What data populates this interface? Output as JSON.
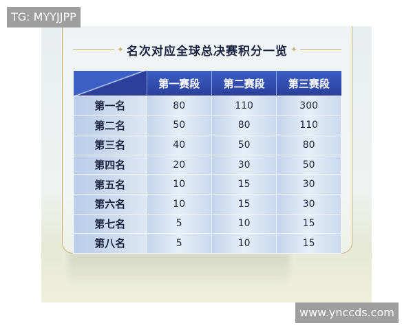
{
  "watermark_top": "TG: MYYJJPP",
  "watermark_bottom": "www.ynccds.com",
  "title": "名次对应全球总决赛积分一览",
  "table": {
    "headers": [
      "第一赛段",
      "第二赛段",
      "第三赛段"
    ],
    "rows": [
      {
        "rank": "第一名",
        "values": [
          "80",
          "110",
          "300"
        ]
      },
      {
        "rank": "第二名",
        "values": [
          "50",
          "80",
          "110"
        ]
      },
      {
        "rank": "第三名",
        "values": [
          "40",
          "50",
          "80"
        ]
      },
      {
        "rank": "第四名",
        "values": [
          "20",
          "30",
          "50"
        ]
      },
      {
        "rank": "第五名",
        "values": [
          "10",
          "15",
          "30"
        ]
      },
      {
        "rank": "第六名",
        "values": [
          "10",
          "15",
          "30"
        ]
      },
      {
        "rank": "第七名",
        "values": [
          "5",
          "10",
          "15"
        ]
      },
      {
        "rank": "第八名",
        "values": [
          "5",
          "10",
          "15"
        ]
      }
    ]
  }
}
